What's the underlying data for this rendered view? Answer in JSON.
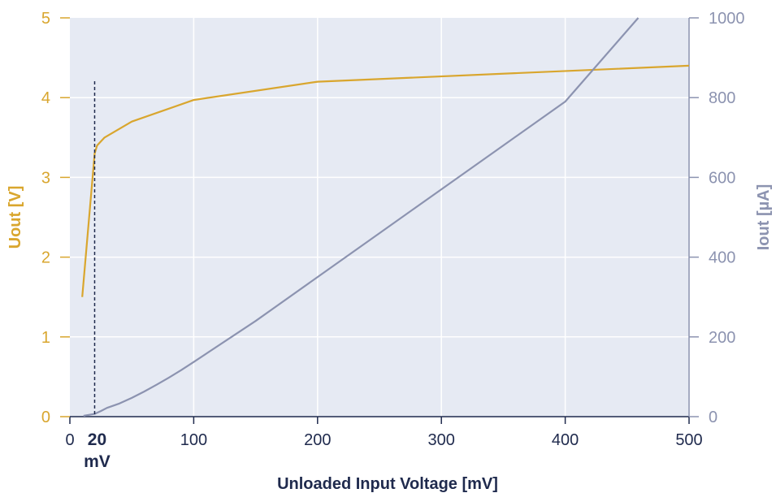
{
  "chart_data": {
    "type": "line",
    "title": "",
    "xlabel": "Unloaded Input Voltage [mV]",
    "ylabel_left": "Uout [V]",
    "ylabel_right": "Iout [µA]",
    "xlim": [
      0,
      500
    ],
    "ylim_left": [
      0,
      5
    ],
    "ylim_right": [
      0,
      1000
    ],
    "x_ticks": [
      "0",
      "100",
      "200",
      "300",
      "400",
      "500"
    ],
    "y_left_ticks": [
      "0",
      "1",
      "2",
      "3",
      "4",
      "5"
    ],
    "y_right_ticks": [
      "0",
      "200",
      "400",
      "600",
      "800",
      "1000"
    ],
    "grid": true,
    "series": [
      {
        "axis": "left",
        "color": "#d9a62e",
        "x": [
          10,
          20,
          22,
          28,
          50,
          100,
          200,
          500
        ],
        "y": [
          1.5,
          3.3,
          3.4,
          3.5,
          3.7,
          3.97,
          4.2,
          4.4
        ]
      },
      {
        "axis": "right",
        "color": "#8c93b0",
        "x": [
          11,
          20,
          25,
          30,
          40,
          50,
          60,
          70,
          80,
          90,
          100,
          150,
          200,
          250,
          300,
          350,
          400,
          459
        ],
        "y": [
          2,
          7,
          14,
          22,
          33,
          47,
          63,
          80,
          98,
          117,
          137,
          240,
          350,
          460,
          570,
          680,
          790,
          1000
        ]
      }
    ],
    "annotation": {
      "x": 20,
      "value": "20",
      "unit": "mV"
    },
    "colors": {
      "plot_background": "#e6eaf3",
      "grid": "#ffffff",
      "left_axis": "#d9a62e",
      "right_axis": "#8c93b0",
      "x_axis": "#1f2a4d"
    }
  }
}
